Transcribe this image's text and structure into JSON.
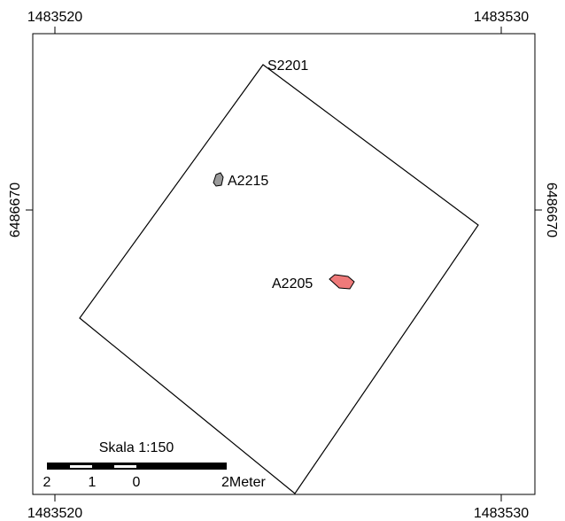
{
  "frame": {
    "top_left": "1483520",
    "top_right": "1483530",
    "bottom_left": "1483520",
    "bottom_right": "1483530",
    "left": "6486670",
    "right": "6486670"
  },
  "features": [
    {
      "label": "S2201"
    },
    {
      "label": "A2215"
    },
    {
      "label": "A2205"
    }
  ],
  "scale": {
    "title": "Skala 1:150",
    "labels": [
      "2",
      "1",
      "0",
      "2Meter"
    ]
  }
}
